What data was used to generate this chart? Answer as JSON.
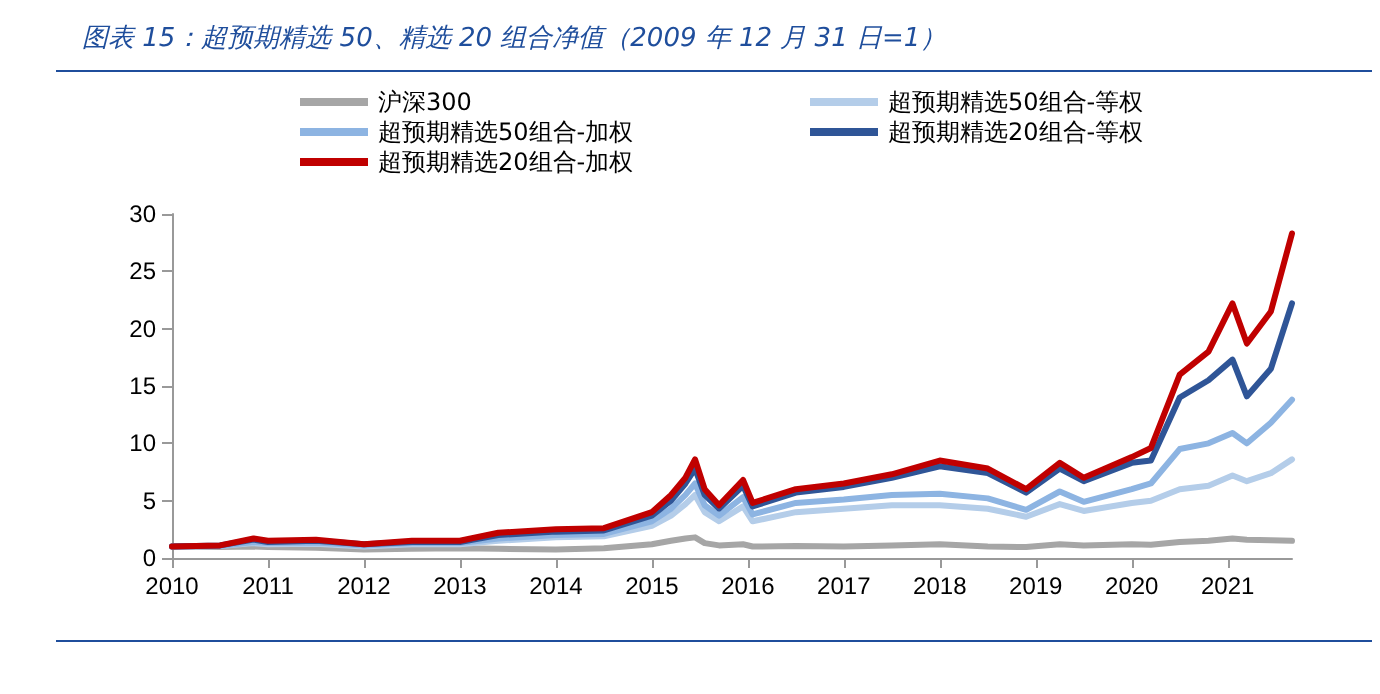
{
  "chart_data": {
    "type": "line",
    "title": "图表 15：超预期精选 50、精选 20 组合净值（2009 年 12 月 31 日=1）",
    "x": [
      2010,
      2010.5,
      2010.85,
      2011,
      2011.5,
      2012,
      2012.5,
      2013,
      2013.4,
      2014,
      2014.5,
      2015,
      2015.2,
      2015.35,
      2015.45,
      2015.55,
      2015.7,
      2015.95,
      2016.05,
      2016.5,
      2017,
      2017.5,
      2018,
      2018.5,
      2018.9,
      2019.25,
      2019.5,
      2020,
      2020.2,
      2020.5,
      2020.8,
      2021.05,
      2021.2,
      2021.45,
      2021.67
    ],
    "series": [
      {
        "name": "沪深300",
        "color": "#a6a6a6",
        "values": [
          1,
          0.95,
          1.0,
          0.95,
          0.9,
          0.75,
          0.8,
          0.85,
          0.8,
          0.75,
          0.85,
          1.2,
          1.5,
          1.7,
          1.8,
          1.3,
          1.1,
          1.2,
          1.0,
          1.05,
          1.0,
          1.1,
          1.2,
          1.0,
          0.95,
          1.2,
          1.1,
          1.2,
          1.15,
          1.4,
          1.5,
          1.7,
          1.6,
          1.55,
          1.5
        ]
      },
      {
        "name": "超预期精选50组合-等权",
        "color": "#b4cde9",
        "values": [
          1,
          1.05,
          1.3,
          1.2,
          1.25,
          1.0,
          1.2,
          1.2,
          1.5,
          1.8,
          1.9,
          2.8,
          3.7,
          4.7,
          5.5,
          4.0,
          3.2,
          4.5,
          3.2,
          4.0,
          4.3,
          4.6,
          4.6,
          4.3,
          3.6,
          4.7,
          4.1,
          4.8,
          5.0,
          6.0,
          6.3,
          7.2,
          6.7,
          7.4,
          8.6
        ]
      },
      {
        "name": "超预期精选50组合-加权",
        "color": "#8db4e2",
        "values": [
          1,
          1.05,
          1.4,
          1.3,
          1.35,
          1.1,
          1.3,
          1.3,
          1.7,
          2.0,
          2.1,
          3.2,
          4.3,
          5.5,
          6.5,
          4.6,
          3.7,
          5.3,
          3.8,
          4.8,
          5.1,
          5.5,
          5.6,
          5.2,
          4.2,
          5.8,
          4.9,
          6.0,
          6.5,
          9.5,
          10.0,
          10.9,
          10.0,
          11.8,
          13.8
        ]
      },
      {
        "name": "超预期精选20组合-等权",
        "color": "#2f5597",
        "values": [
          1,
          1.1,
          1.6,
          1.4,
          1.5,
          1.2,
          1.4,
          1.4,
          2.0,
          2.3,
          2.4,
          3.7,
          5.0,
          6.5,
          7.8,
          5.5,
          4.3,
          6.3,
          4.5,
          5.7,
          6.2,
          7.0,
          8.0,
          7.4,
          5.7,
          7.8,
          6.7,
          8.3,
          8.5,
          14.0,
          15.5,
          17.3,
          14.1,
          16.5,
          22.2
        ]
      },
      {
        "name": "超预期精选20组合-加权",
        "color": "#c00000",
        "values": [
          1,
          1.1,
          1.7,
          1.5,
          1.6,
          1.2,
          1.5,
          1.5,
          2.2,
          2.5,
          2.6,
          4.0,
          5.5,
          7.0,
          8.6,
          6.0,
          4.6,
          6.8,
          4.8,
          6.0,
          6.5,
          7.3,
          8.5,
          7.8,
          6.0,
          8.3,
          7.0,
          8.8,
          9.6,
          16.0,
          18.0,
          22.2,
          18.7,
          21.5,
          28.3
        ]
      }
    ],
    "xlim": [
      2010,
      2021.67
    ],
    "xticks": [
      2010,
      2011,
      2012,
      2013,
      2014,
      2015,
      2016,
      2017,
      2018,
      2019,
      2020,
      2021
    ],
    "ylim": [
      0,
      30
    ],
    "yticks": [
      0,
      5,
      10,
      15,
      20,
      25,
      30
    ],
    "grid": false,
    "legend": "top",
    "marker": "none",
    "line_style": "solid"
  }
}
